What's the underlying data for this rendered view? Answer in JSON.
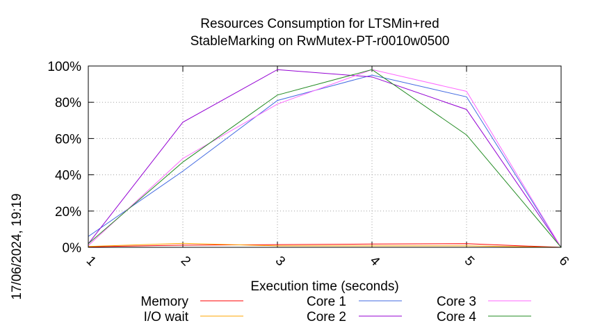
{
  "chart_data": {
    "type": "line",
    "title": "Resources Consumption for LTSMin+red",
    "subtitle": "StableMarking on RwMutex-PT-r0010w0500",
    "xlabel": "Execution time (seconds)",
    "ylabel": "",
    "timestamp": "17/06/2024, 19:19",
    "x": [
      1,
      2,
      3,
      4,
      5,
      6
    ],
    "xlim": [
      1,
      6
    ],
    "ylim": [
      0,
      100
    ],
    "x_tick_labels": [
      "1",
      "2",
      "3",
      "4",
      "5",
      "6"
    ],
    "y_tick_labels": [
      "0%",
      "20%",
      "40%",
      "60%",
      "80%",
      "100%"
    ],
    "y_ticks": [
      0,
      20,
      40,
      60,
      80,
      100
    ],
    "grid": true,
    "legend_position": "bottom",
    "series": [
      {
        "name": "Memory",
        "color": "#ff0000",
        "values": [
          0.3,
          1.2,
          1.5,
          1.8,
          2.0,
          0
        ]
      },
      {
        "name": "I/O wait",
        "color": "#ffa500",
        "values": [
          0.5,
          2.2,
          0.8,
          0.8,
          0.8,
          0
        ]
      },
      {
        "name": "Core 1",
        "color": "#4169e1",
        "values": [
          6,
          42,
          81,
          95,
          83,
          0
        ]
      },
      {
        "name": "Core 2",
        "color": "#9400d3",
        "values": [
          2,
          69,
          98,
          94,
          76,
          0
        ]
      },
      {
        "name": "Core 3",
        "color": "#ff66ff",
        "values": [
          1,
          49,
          79,
          98,
          86,
          0
        ]
      },
      {
        "name": "Core 4",
        "color": "#228b22",
        "values": [
          2,
          47,
          84,
          98,
          62,
          0
        ]
      }
    ]
  }
}
